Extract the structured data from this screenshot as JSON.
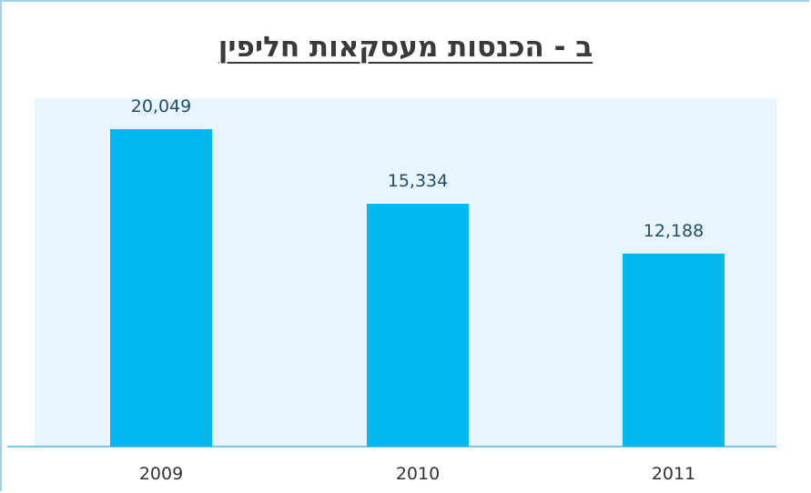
{
  "chart_data": {
    "type": "bar",
    "title": "ב - הכנסות מעסקאות חליפין",
    "categories": [
      "2009",
      "2010",
      "2011"
    ],
    "values": [
      20049,
      15334,
      12188
    ],
    "data_labels": [
      "20,049",
      "15,334",
      "12,188"
    ],
    "ylim": [
      0,
      22000
    ],
    "grid": false,
    "legend": "none",
    "colors": {
      "bar": "#00b7ef",
      "plot_background": "#e9f5fc",
      "axis_line": "#7ec3e3",
      "frame": "#9fd0ea"
    }
  }
}
